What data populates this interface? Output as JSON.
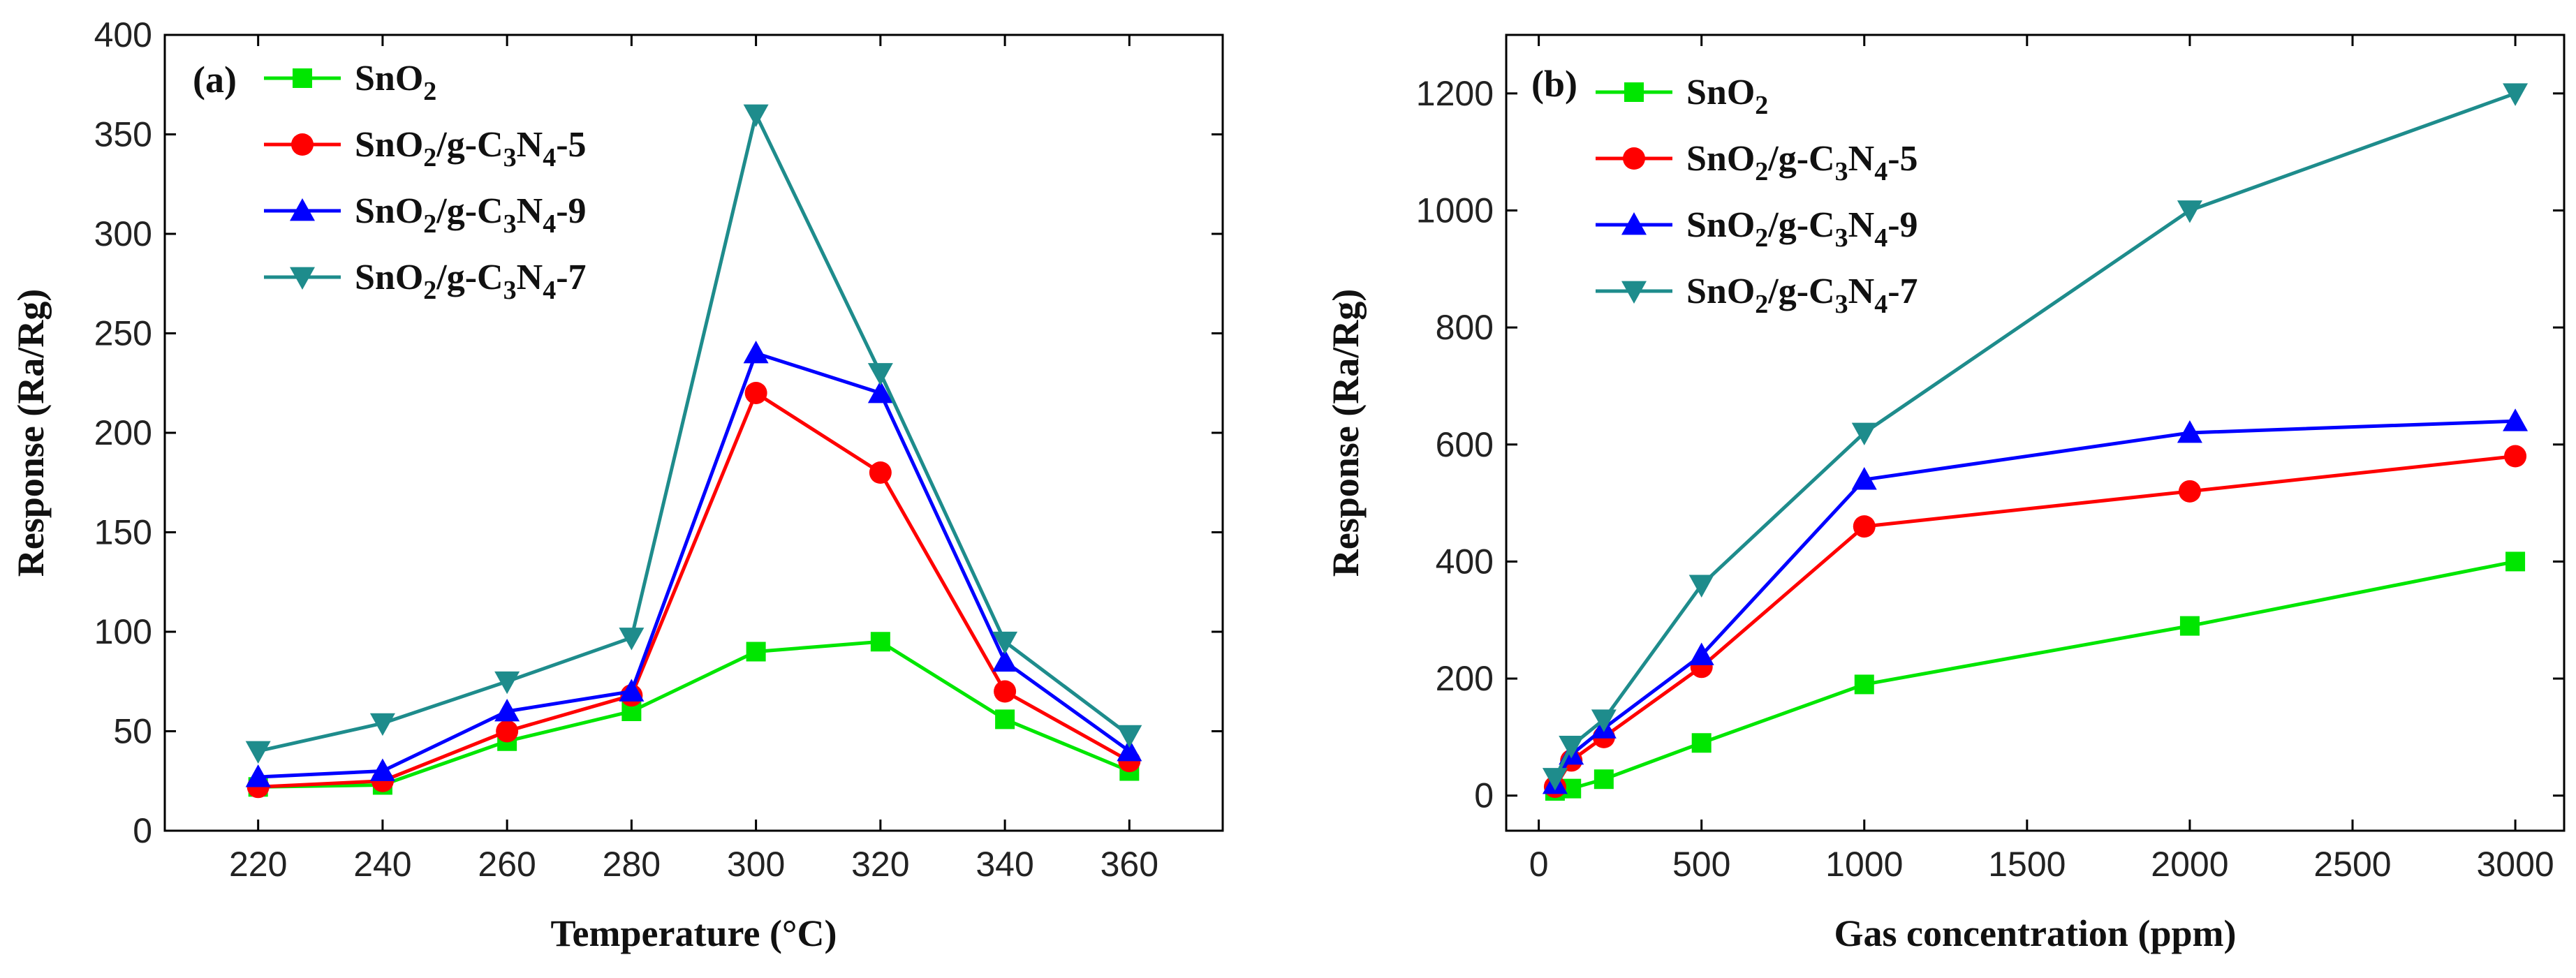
{
  "chart_data": [
    {
      "type": "line",
      "panel_label": "(a)",
      "xlabel": "Temperature (°C)",
      "ylabel": "Response (Ra/Rg)",
      "x": [
        220,
        240,
        260,
        280,
        300,
        320,
        340,
        360
      ],
      "xlim": [
        205,
        375
      ],
      "ylim": [
        0,
        400
      ],
      "xticks": [
        220,
        240,
        260,
        280,
        300,
        320,
        340,
        360
      ],
      "yticks": [
        0,
        50,
        100,
        150,
        200,
        250,
        300,
        350,
        400
      ],
      "legend_position": "top-left",
      "series": [
        {
          "name": "SnO2",
          "label_parts": [
            [
              "SnO",
              ""
            ],
            [
              "2",
              "sub"
            ]
          ],
          "color": "#00e600",
          "marker": "square",
          "values": [
            22,
            23,
            45,
            60,
            90,
            95,
            56,
            30
          ]
        },
        {
          "name": "SnO2/g-C3N4-5",
          "label_parts": [
            [
              "SnO",
              ""
            ],
            [
              "2",
              "sub"
            ],
            [
              "/g-C",
              ""
            ],
            [
              "3",
              "sub"
            ],
            [
              "N",
              ""
            ],
            [
              "4",
              "sub"
            ],
            [
              "-5",
              ""
            ]
          ],
          "color": "#ff0000",
          "marker": "circle",
          "values": [
            22,
            25,
            50,
            68,
            220,
            180,
            70,
            35
          ]
        },
        {
          "name": "SnO2/g-C3N4-9",
          "label_parts": [
            [
              "SnO",
              ""
            ],
            [
              "2",
              "sub"
            ],
            [
              "/g-C",
              ""
            ],
            [
              "3",
              "sub"
            ],
            [
              "N",
              ""
            ],
            [
              "4",
              "sub"
            ],
            [
              "-9",
              ""
            ]
          ],
          "color": "#0000ff",
          "marker": "triangle-up",
          "values": [
            27,
            30,
            60,
            70,
            240,
            220,
            85,
            40
          ]
        },
        {
          "name": "SnO2/g-C3N4-7",
          "label_parts": [
            [
              "SnO",
              ""
            ],
            [
              "2",
              "sub"
            ],
            [
              "/g-C",
              ""
            ],
            [
              "3",
              "sub"
            ],
            [
              "N",
              ""
            ],
            [
              "4",
              "sub"
            ],
            [
              "-7",
              ""
            ]
          ],
          "color": "#1e8c8c",
          "marker": "triangle-down",
          "values": [
            40,
            54,
            75,
            97,
            360,
            230,
            95,
            48
          ]
        }
      ]
    },
    {
      "type": "line",
      "panel_label": "(b)",
      "xlabel": "Gas concentration (ppm)",
      "ylabel": "Response (Ra/Rg)",
      "x": [
        50,
        100,
        200,
        500,
        1000,
        2000,
        3000
      ],
      "xlim": [
        -100,
        3150
      ],
      "ylim": [
        -60,
        1300
      ],
      "xticks": [
        0,
        500,
        1000,
        1500,
        2000,
        2500,
        3000
      ],
      "yticks": [
        0,
        200,
        400,
        600,
        800,
        1000,
        1200
      ],
      "legend_position": "top-left",
      "series": [
        {
          "name": "SnO2",
          "label_parts": [
            [
              "SnO",
              ""
            ],
            [
              "2",
              "sub"
            ]
          ],
          "color": "#00e600",
          "marker": "square",
          "values": [
            8,
            12,
            28,
            90,
            190,
            290,
            400
          ]
        },
        {
          "name": "SnO2/g-C3N4-5",
          "label_parts": [
            [
              "SnO",
              ""
            ],
            [
              "2",
              "sub"
            ],
            [
              "/g-C",
              ""
            ],
            [
              "3",
              "sub"
            ],
            [
              "N",
              ""
            ],
            [
              "4",
              "sub"
            ],
            [
              "-5",
              ""
            ]
          ],
          "color": "#ff0000",
          "marker": "circle",
          "values": [
            15,
            60,
            100,
            220,
            460,
            520,
            580
          ]
        },
        {
          "name": "SnO2/g-C3N4-9",
          "label_parts": [
            [
              "SnO",
              ""
            ],
            [
              "2",
              "sub"
            ],
            [
              "/g-C",
              ""
            ],
            [
              "3",
              "sub"
            ],
            [
              "N",
              ""
            ],
            [
              "4",
              "sub"
            ],
            [
              "-9",
              ""
            ]
          ],
          "color": "#0000ff",
          "marker": "triangle-up",
          "values": [
            20,
            70,
            115,
            240,
            540,
            620,
            640
          ]
        },
        {
          "name": "SnO2/g-C3N4-7",
          "label_parts": [
            [
              "SnO",
              ""
            ],
            [
              "2",
              "sub"
            ],
            [
              "/g-C",
              ""
            ],
            [
              "3",
              "sub"
            ],
            [
              "N",
              ""
            ],
            [
              "4",
              "sub"
            ],
            [
              "-7",
              ""
            ]
          ],
          "color": "#1e8c8c",
          "marker": "triangle-down",
          "values": [
            30,
            85,
            130,
            360,
            620,
            1000,
            1200
          ]
        }
      ]
    }
  ]
}
